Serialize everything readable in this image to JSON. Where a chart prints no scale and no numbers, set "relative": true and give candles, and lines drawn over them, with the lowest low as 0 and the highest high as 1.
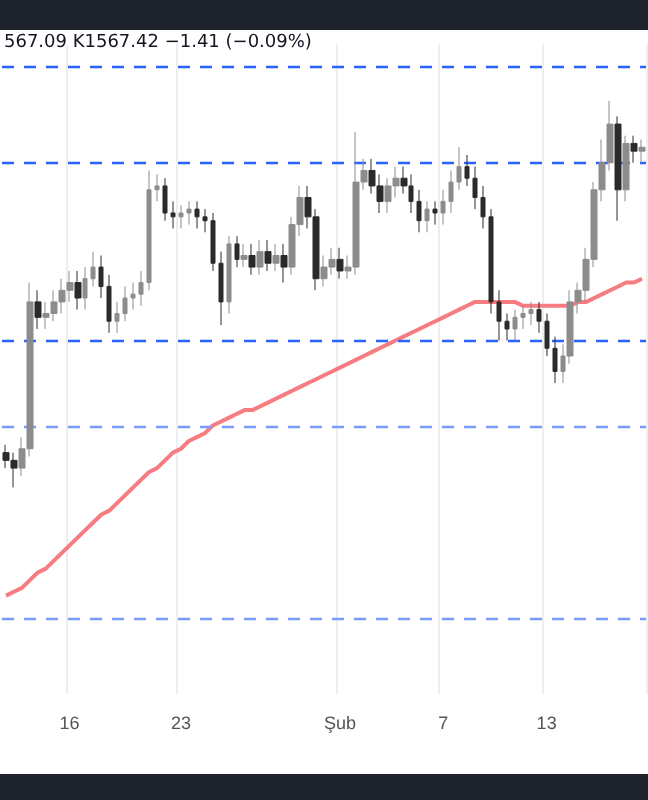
{
  "chart_data": {
    "type": "candlestick",
    "relative": true,
    "annotations": [
      "567.09 K1567.42 −1.41 (−0.09%)"
    ],
    "categories": [
      null,
      null,
      null,
      null,
      null,
      null,
      null,
      null,
      "16",
      null,
      null,
      null,
      null,
      null,
      null,
      null,
      null,
      null,
      null,
      null,
      null,
      null,
      "23",
      null,
      null,
      null,
      null,
      null,
      null,
      null,
      null,
      null,
      null,
      null,
      null,
      null,
      null,
      null,
      null,
      null,
      null,
      null,
      "Şub",
      null,
      null,
      null,
      null,
      null,
      null,
      null,
      null,
      null,
      null,
      null,
      null,
      "7",
      null,
      null,
      null,
      null,
      null,
      null,
      null,
      null,
      null,
      null,
      null,
      null,
      "13",
      null,
      null,
      null,
      null,
      null,
      null,
      null,
      null,
      null,
      null,
      null,
      null
    ],
    "grid": "x",
    "series": [
      {
        "type": "candlestick",
        "colors": [
          "#2a2a2a",
          "#2a2a2a",
          "#8c8c8c",
          "#8c8c8c",
          "#2a2a2a",
          "#8c8c8c",
          "#8c8c8c",
          "#8c8c8c",
          "#8c8c8c",
          "#2a2a2a",
          "#8c8c8c",
          "#8c8c8c",
          "#2a2a2a",
          "#2a2a2a",
          "#8c8c8c",
          "#8c8c8c",
          "#8c8c8c",
          "#8c8c8c",
          "#8c8c8c",
          "#8c8c8c",
          "#2a2a2a",
          "#2a2a2a",
          "#8c8c8c",
          "#8c8c8c",
          "#2a2a2a",
          "#2a2a2a",
          "#2a2a2a",
          "#2a2a2a",
          "#8c8c8c",
          "#2a2a2a",
          "#8c8c8c",
          "#2a2a2a",
          "#8c8c8c",
          "#2a2a2a",
          "#8c8c8c",
          "#2a2a2a",
          "#8c8c8c",
          "#8c8c8c",
          "#2a2a2a",
          "#2a2a2a",
          "#8c8c8c",
          "#8c8c8c",
          "#2a2a2a",
          "#8c8c8c",
          "#8c8c8c",
          "#8c8c8c",
          "#2a2a2a",
          "#2a2a2a",
          "#8c8c8c",
          "#8c8c8c",
          "#2a2a2a",
          "#2a2a2a",
          "#2a2a2a",
          "#8c8c8c",
          "#2a2a2a",
          "#8c8c8c",
          "#8c8c8c",
          "#8c8c8c",
          "#2a2a2a",
          "#2a2a2a",
          "#2a2a2a",
          "#2a2a2a",
          "#2a2a2a",
          "#2a2a2a",
          "#8c8c8c",
          "#8c8c8c",
          "#8c8c8c",
          "#2a2a2a",
          "#2a2a2a",
          "#2a2a2a",
          "#8c8c8c",
          "#8c8c8c",
          "#8c8c8c",
          "#8c8c8c",
          "#8c8c8c",
          "#8c8c8c",
          "#8c8c8c",
          "#2a2a2a",
          "#8c8c8c",
          "#2a2a2a",
          "#8c8c8c"
        ],
        "ohlc": [
          [
            0.09,
            0.11,
            0.05,
            0.07
          ],
          [
            0.07,
            0.09,
            0,
            0.05
          ],
          [
            0.05,
            0.13,
            0.03,
            0.1
          ],
          [
            0.1,
            0.53,
            0.08,
            0.48
          ],
          [
            0.48,
            0.51,
            0.41,
            0.44
          ],
          [
            0.44,
            0.48,
            0.41,
            0.45
          ],
          [
            0.45,
            0.51,
            0.43,
            0.48
          ],
          [
            0.48,
            0.54,
            0.45,
            0.51
          ],
          [
            0.51,
            0.56,
            0.48,
            0.53
          ],
          [
            0.53,
            0.56,
            0.46,
            0.49
          ],
          [
            0.49,
            0.57,
            0.46,
            0.54
          ],
          [
            0.54,
            0.61,
            0.52,
            0.57
          ],
          [
            0.57,
            0.6,
            0.49,
            0.52
          ],
          [
            0.52,
            0.55,
            0.4,
            0.43
          ],
          [
            0.43,
            0.48,
            0.4,
            0.45
          ],
          [
            0.45,
            0.52,
            0.43,
            0.49
          ],
          [
            0.49,
            0.53,
            0.46,
            0.5
          ],
          [
            0.5,
            0.56,
            0.47,
            0.53
          ],
          [
            0.53,
            0.82,
            0.51,
            0.77
          ],
          [
            0.77,
            0.81,
            0.74,
            0.78
          ],
          [
            0.78,
            0.8,
            0.69,
            0.71
          ],
          [
            0.71,
            0.74,
            0.67,
            0.7
          ],
          [
            0.7,
            0.73,
            0.67,
            0.71
          ],
          [
            0.71,
            0.74,
            0.68,
            0.72
          ],
          [
            0.72,
            0.74,
            0.67,
            0.7
          ],
          [
            0.7,
            0.72,
            0.66,
            0.69
          ],
          [
            0.69,
            0.71,
            0.56,
            0.58
          ],
          [
            0.58,
            0.61,
            0.42,
            0.48
          ],
          [
            0.48,
            0.65,
            0.45,
            0.63
          ],
          [
            0.63,
            0.65,
            0.57,
            0.59
          ],
          [
            0.59,
            0.63,
            0.57,
            0.6
          ],
          [
            0.6,
            0.63,
            0.55,
            0.57
          ],
          [
            0.57,
            0.64,
            0.55,
            0.61
          ],
          [
            0.61,
            0.64,
            0.56,
            0.58
          ],
          [
            0.58,
            0.63,
            0.56,
            0.6
          ],
          [
            0.6,
            0.63,
            0.53,
            0.57
          ],
          [
            0.57,
            0.7,
            0.55,
            0.68
          ],
          [
            0.68,
            0.78,
            0.65,
            0.75
          ],
          [
            0.75,
            0.78,
            0.67,
            0.7
          ],
          [
            0.7,
            0.72,
            0.51,
            0.54
          ],
          [
            0.54,
            0.6,
            0.52,
            0.57
          ],
          [
            0.57,
            0.62,
            0.55,
            0.59
          ],
          [
            0.59,
            0.62,
            0.54,
            0.56
          ],
          [
            0.56,
            0.6,
            0.54,
            0.57
          ],
          [
            0.57,
            0.92,
            0.55,
            0.79
          ],
          [
            0.79,
            0.85,
            0.77,
            0.82
          ],
          [
            0.82,
            0.85,
            0.76,
            0.78
          ],
          [
            0.78,
            0.81,
            0.71,
            0.74
          ],
          [
            0.74,
            0.8,
            0.71,
            0.78
          ],
          [
            0.78,
            0.83,
            0.75,
            0.8
          ],
          [
            0.8,
            0.83,
            0.76,
            0.78
          ],
          [
            0.78,
            0.81,
            0.71,
            0.74
          ],
          [
            0.74,
            0.77,
            0.66,
            0.69
          ],
          [
            0.69,
            0.74,
            0.66,
            0.72
          ],
          [
            0.72,
            0.74,
            0.68,
            0.71
          ],
          [
            0.71,
            0.77,
            0.68,
            0.74
          ],
          [
            0.74,
            0.82,
            0.71,
            0.79
          ],
          [
            0.79,
            0.88,
            0.77,
            0.83
          ],
          [
            0.83,
            0.86,
            0.78,
            0.8
          ],
          [
            0.8,
            0.83,
            0.72,
            0.75
          ],
          [
            0.75,
            0.78,
            0.67,
            0.7
          ],
          [
            0.7,
            0.72,
            0.45,
            0.48
          ],
          [
            0.48,
            0.51,
            0.38,
            0.43
          ],
          [
            0.43,
            0.45,
            0.38,
            0.41
          ],
          [
            0.41,
            0.46,
            0.38,
            0.44
          ],
          [
            0.44,
            0.47,
            0.41,
            0.45
          ],
          [
            0.45,
            0.48,
            0.42,
            0.46
          ],
          [
            0.46,
            0.48,
            0.4,
            0.43
          ],
          [
            0.43,
            0.45,
            0.34,
            0.36
          ],
          [
            0.36,
            0.39,
            0.27,
            0.3
          ],
          [
            0.3,
            0.37,
            0.27,
            0.34
          ],
          [
            0.34,
            0.51,
            0.32,
            0.48
          ],
          [
            0.48,
            0.53,
            0.45,
            0.51
          ],
          [
            0.51,
            0.62,
            0.48,
            0.59
          ],
          [
            0.59,
            0.79,
            0.57,
            0.77
          ],
          [
            0.77,
            0.9,
            0.74,
            0.84
          ],
          [
            0.84,
            1,
            0.82,
            0.94
          ],
          [
            0.94,
            0.96,
            0.69,
            0.77
          ],
          [
            0.77,
            0.91,
            0.74,
            0.89
          ],
          [
            0.89,
            0.91,
            0.84,
            0.87
          ],
          [
            0.87,
            0.9,
            0.84,
            0.88
          ]
        ]
      },
      {
        "type": "line",
        "color": "#f77c80",
        "values": [
          -0.28,
          -0.27,
          -0.26,
          -0.24,
          -0.22,
          -0.21,
          -0.19,
          -0.17,
          -0.15,
          -0.13,
          -0.11,
          -0.09,
          -0.07,
          -0.06,
          -0.04,
          -0.02,
          0,
          0.02,
          0.04,
          0.05,
          0.07,
          0.09,
          0.1,
          0.12,
          0.13,
          0.14,
          0.16,
          0.17,
          0.18,
          0.19,
          0.2,
          0.2,
          0.21,
          0.22,
          0.23,
          0.24,
          0.25,
          0.26,
          0.27,
          0.28,
          0.29,
          0.3,
          0.31,
          0.32,
          0.33,
          0.34,
          0.35,
          0.36,
          0.37,
          0.38,
          0.39,
          0.4,
          0.41,
          0.42,
          0.43,
          0.44,
          0.45,
          0.46,
          0.47,
          0.48,
          0.48,
          0.48,
          0.48,
          0.48,
          0.48,
          0.47,
          0.47,
          0.47,
          0.47,
          0.47,
          0.47,
          0.47,
          0.48,
          0.48,
          0.49,
          0.5,
          0.51,
          0.52,
          0.53,
          0.53,
          0.54
        ]
      }
    ],
    "ref_lines": [
      {
        "axis": "y",
        "value": 1.09,
        "color": "#2962ff",
        "line_style": "dashed"
      },
      {
        "axis": "y",
        "value": 0.84,
        "color": "#2962ff",
        "line_style": "dashed"
      },
      {
        "axis": "y",
        "value": 0.38,
        "color": "#2962ff",
        "line_style": "dashed"
      },
      {
        "axis": "y",
        "value": 0.16,
        "color": "#7b9cff",
        "line_style": "dashed"
      },
      {
        "axis": "y",
        "value": -0.34,
        "color": "#7b9cff",
        "line_style": "dashed"
      }
    ]
  }
}
